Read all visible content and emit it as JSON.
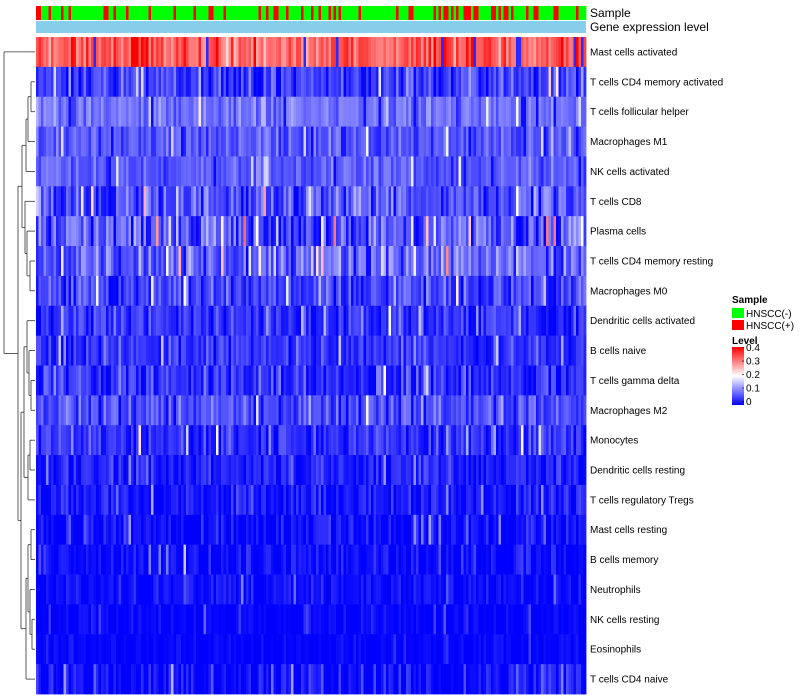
{
  "chart_data": {
    "type": "heatmap",
    "title": "",
    "annotation_tracks": [
      {
        "name": "Sample",
        "kind": "categorical"
      },
      {
        "name": "Gene expression level",
        "kind": "continuous"
      }
    ],
    "rows": [
      {
        "name": "Mast cells activated",
        "mean": 0.33,
        "spread": 0.07
      },
      {
        "name": "T cells CD4 memory activated",
        "mean": 0.05,
        "spread": 0.06
      },
      {
        "name": "T cells follicular helper",
        "mean": 0.09,
        "spread": 0.04
      },
      {
        "name": "Macrophages M1",
        "mean": 0.07,
        "spread": 0.04
      },
      {
        "name": "NK cells activated",
        "mean": 0.07,
        "spread": 0.04
      },
      {
        "name": "T cells CD8",
        "mean": 0.06,
        "spread": 0.07
      },
      {
        "name": "Plasma cells",
        "mean": 0.07,
        "spread": 0.08
      },
      {
        "name": "T cells CD4 memory resting",
        "mean": 0.08,
        "spread": 0.07
      },
      {
        "name": "Macrophages M0",
        "mean": 0.06,
        "spread": 0.06
      },
      {
        "name": "Dendritic cells activated",
        "mean": 0.04,
        "spread": 0.05
      },
      {
        "name": "B cells naive",
        "mean": 0.04,
        "spread": 0.04
      },
      {
        "name": "T cells gamma delta",
        "mean": 0.04,
        "spread": 0.05
      },
      {
        "name": "Macrophages M2",
        "mean": 0.06,
        "spread": 0.05
      },
      {
        "name": "Monocytes",
        "mean": 0.04,
        "spread": 0.05
      },
      {
        "name": "Dendritic cells resting",
        "mean": 0.03,
        "spread": 0.04
      },
      {
        "name": "T cells regulatory  Tregs",
        "mean": 0.02,
        "spread": 0.04
      },
      {
        "name": "Mast cells resting",
        "mean": 0.01,
        "spread": 0.04
      },
      {
        "name": "B cells memory",
        "mean": 0.01,
        "spread": 0.04
      },
      {
        "name": "Neutrophils",
        "mean": 0.01,
        "spread": 0.03
      },
      {
        "name": "NK cells resting",
        "mean": 0.005,
        "spread": 0.02
      },
      {
        "name": "Eosinophils",
        "mean": 0.003,
        "spread": 0.015
      },
      {
        "name": "T cells CD4 naive",
        "mean": 0.01,
        "spread": 0.05
      }
    ],
    "n_samples": 220,
    "sample_groups": [
      "HNSCC(-)",
      "HNSCC(+)"
    ],
    "sample_positive_fraction": 0.28,
    "color_scale": {
      "min": 0,
      "max": 0.4,
      "stops": [
        "#0000FF",
        "#FFFFFF",
        "#FF0000"
      ],
      "stop_values": [
        0,
        0.2,
        0.4
      ]
    },
    "legend": {
      "placement": "right",
      "sample_title": "Sample",
      "sample_items": [
        {
          "label": "HNSCC(-)",
          "color": "#00FF00"
        },
        {
          "label": "HNSCC(+)",
          "color": "#FF0000"
        }
      ],
      "level_title": "Level",
      "level_ticks": [
        "0.4",
        "0.3",
        "0.2",
        "0.1",
        "0"
      ]
    },
    "annotation_colors": {
      "negative": "#00FF00",
      "positive": "#FF0000",
      "expression": "#87CEEB"
    }
  }
}
